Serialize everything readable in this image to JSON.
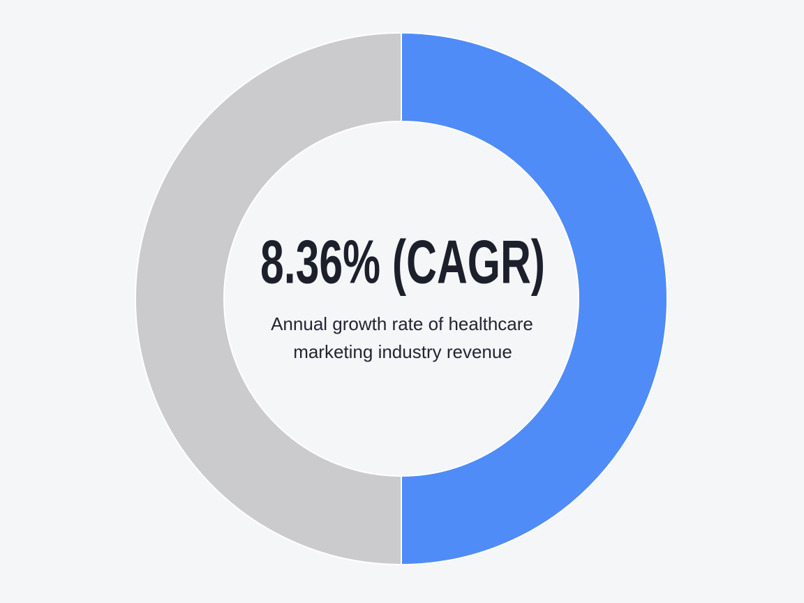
{
  "chart_data": {
    "type": "donut",
    "values": [
      50,
      50
    ],
    "colors": [
      "#4f8cf7",
      "#cbcbcd"
    ],
    "center_label": "8.36% (CAGR)",
    "subtitle_lines": [
      "Annual growth rate of healthcare",
      "marketing industry revenue"
    ]
  }
}
